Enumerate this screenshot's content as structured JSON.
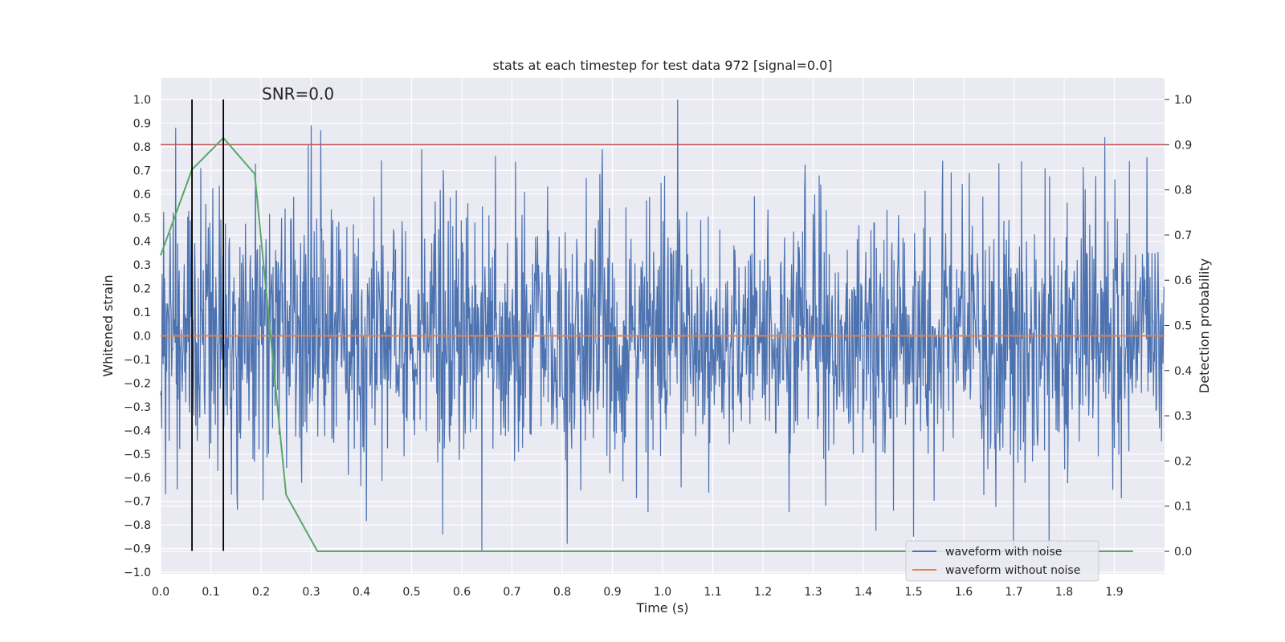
{
  "chart_data": {
    "type": "line",
    "title": "stats at each timestep for test data 972 [signal=0.0]",
    "xlabel": "Time (s)",
    "ylabel": "Whitened strain",
    "y2label": "Detection probability",
    "annotation": "SNR=0.0",
    "xlim": [
      0.0,
      2.0
    ],
    "ylim": [
      -1.0,
      1.0
    ],
    "y2lim": [
      -0.05,
      1.05
    ],
    "x_ticks": [
      0.0,
      0.1,
      0.2,
      0.3,
      0.4,
      0.5,
      0.6,
      0.7,
      0.8,
      0.9,
      1.0,
      1.1,
      1.2,
      1.3,
      1.4,
      1.5,
      1.6,
      1.7,
      1.8,
      1.9
    ],
    "x_tick_labels": [
      "0.0",
      "0.1",
      "0.2",
      "0.3",
      "0.4",
      "0.5",
      "0.6",
      "0.7",
      "0.8",
      "0.9",
      "1.0",
      "1.1",
      "1.2",
      "1.3",
      "1.4",
      "1.5",
      "1.6",
      "1.7",
      "1.8",
      "1.9"
    ],
    "y_ticks": [
      1.0,
      0.9,
      0.8,
      0.7,
      0.6,
      0.5,
      0.4,
      0.3,
      0.2,
      0.1,
      0.0,
      -0.1,
      -0.2,
      -0.3,
      -0.4,
      -0.5,
      -0.6,
      -0.7,
      -0.8,
      -0.9,
      -1.0
    ],
    "y_tick_labels": [
      "1.0",
      "0.9",
      "0.8",
      "0.7",
      "0.6",
      "0.5",
      "0.4",
      "0.3",
      "0.2",
      "0.1",
      "0.0",
      "−0.1",
      "−0.2",
      "−0.3",
      "−0.4",
      "−0.5",
      "−0.6",
      "−0.7",
      "−0.8",
      "−0.9",
      "−1.0"
    ],
    "y2_ticks": [
      1.0,
      0.9,
      0.8,
      0.7,
      0.6,
      0.5,
      0.4,
      0.3,
      0.2,
      0.1,
      0.0
    ],
    "y2_tick_labels": [
      "1.0",
      "0.9",
      "0.8",
      "0.7",
      "0.6",
      "0.5",
      "0.4",
      "0.3",
      "0.2",
      "0.1",
      "0.0"
    ],
    "threshold": {
      "value": 0.9,
      "axis": "y2",
      "color": "#c44e52"
    },
    "markers": {
      "x": [
        0.0625,
        0.125
      ],
      "y_range": [
        -0.91,
        1.0
      ],
      "color": "#000000"
    },
    "series": [
      {
        "name": "waveform with noise",
        "axis": "y",
        "color": "#4c72b0",
        "noise": {
          "samples": 2000,
          "x_range": [
            0.0,
            2.0
          ],
          "std": 0.27,
          "seed": 972
        },
        "peaks": [
          {
            "x": 0.03,
            "y": 0.88
          },
          {
            "x": 0.01,
            "y": -0.67
          },
          {
            "x": 0.033,
            "y": -0.65
          },
          {
            "x": 0.08,
            "y": 0.71
          },
          {
            "x": 0.3,
            "y": 0.89
          },
          {
            "x": 0.52,
            "y": 0.79
          },
          {
            "x": 0.64,
            "y": -0.91
          },
          {
            "x": 0.81,
            "y": -0.88
          },
          {
            "x": 1.03,
            "y": 1.0
          },
          {
            "x": 0.88,
            "y": 0.79
          },
          {
            "x": 1.5,
            "y": -0.85
          },
          {
            "x": 1.93,
            "y": 0.74
          },
          {
            "x": 1.67,
            "y": 0.73
          },
          {
            "x": 1.46,
            "y": -0.74
          }
        ]
      },
      {
        "name": "waveform without noise",
        "axis": "y",
        "color": "#dd8452",
        "x": [
          0.0,
          2.0
        ],
        "y": [
          0.0,
          0.0
        ]
      },
      {
        "name": "detection probability",
        "axis": "y2",
        "color": "#55a868",
        "x": [
          0.0,
          0.0625,
          0.125,
          0.1875,
          0.25,
          0.3125,
          0.375,
          0.5,
          1.0,
          1.5,
          1.9375
        ],
        "y": [
          0.655,
          0.845,
          0.915,
          0.835,
          0.125,
          0.0,
          0.0,
          0.0,
          0.0,
          0.0,
          0.0
        ]
      }
    ],
    "legend": {
      "position": "lower-right",
      "entries": [
        {
          "label": "waveform with noise",
          "color": "#4c72b0"
        },
        {
          "label": "waveform without noise",
          "color": "#dd8452"
        }
      ]
    },
    "colors": {
      "plot_background": "#eaeaf2",
      "grid": "#ffffff"
    }
  }
}
